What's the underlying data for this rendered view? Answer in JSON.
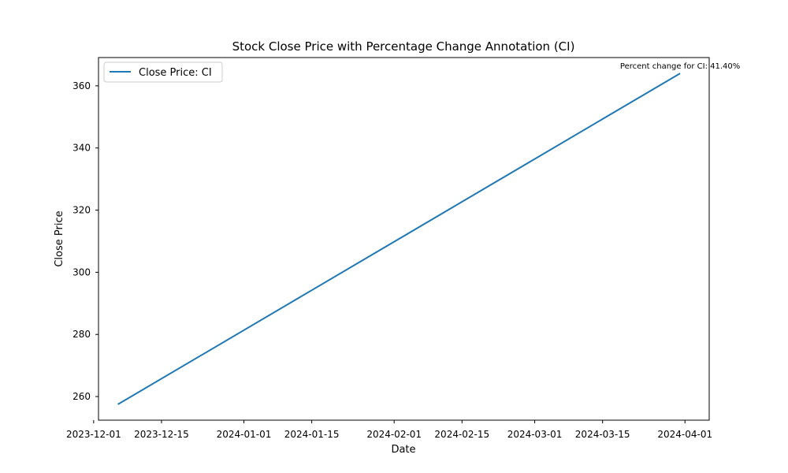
{
  "chart_data": {
    "type": "line",
    "title": "Stock Close Price with Percentage Change Annotation (CI)",
    "xlabel": "Date",
    "ylabel": "Close Price",
    "x_type": "date",
    "xlim": [
      "2023-12-02",
      "2024-04-06"
    ],
    "ylim": [
      252.4,
      369.1
    ],
    "x_ticks": [
      "2023-12-01",
      "2023-12-15",
      "2024-01-01",
      "2024-01-15",
      "2024-02-01",
      "2024-02-15",
      "2024-03-01",
      "2024-03-15",
      "2024-04-01"
    ],
    "y_ticks": [
      260,
      280,
      300,
      320,
      340,
      360
    ],
    "grid": false,
    "legend": {
      "position": "top-left"
    },
    "series": [
      {
        "name": "Close Price: CI",
        "color": "#1f77b4",
        "x": [
          "2023-12-06",
          "2024-03-31"
        ],
        "y": [
          257.5,
          364.0
        ]
      }
    ],
    "annotations": [
      {
        "text": "Percent change for CI: 41.40%",
        "x": "2024-03-31",
        "y": 364.0
      }
    ]
  }
}
